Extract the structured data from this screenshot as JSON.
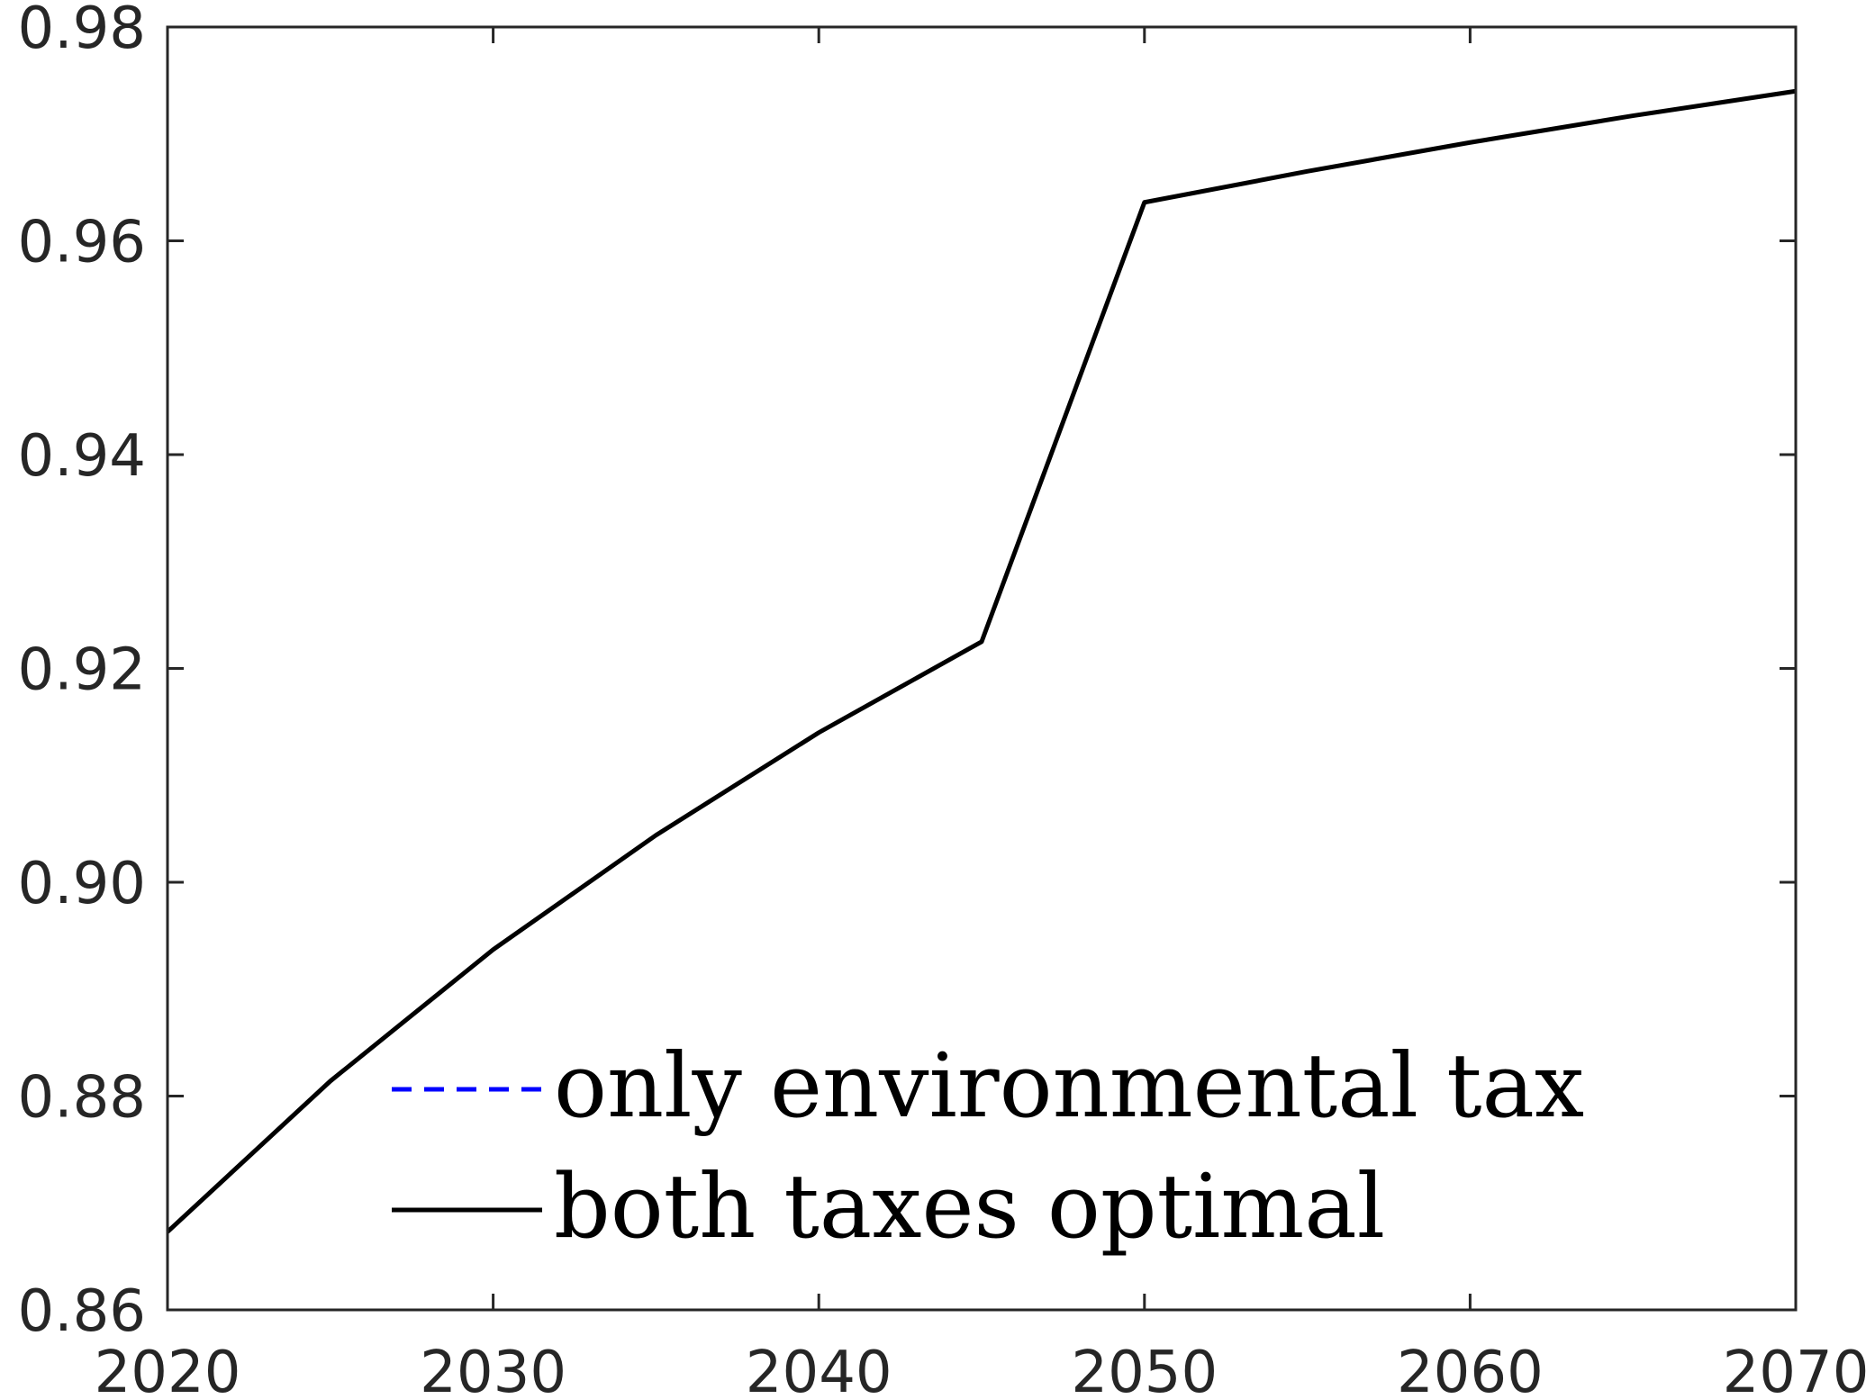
{
  "chart_data": {
    "type": "line",
    "title": "",
    "xlabel": "",
    "ylabel": "",
    "xlim": [
      2020,
      2070
    ],
    "ylim": [
      0.86,
      0.98
    ],
    "x_ticks": [
      2020,
      2030,
      2040,
      2050,
      2060,
      2070
    ],
    "x_tick_labels": [
      "2020",
      "2030",
      "2040",
      "2050",
      "2060",
      "2070"
    ],
    "y_ticks": [
      0.86,
      0.88,
      0.9,
      0.92,
      0.94,
      0.96,
      0.98
    ],
    "y_tick_labels": [
      "0.86",
      "0.88",
      "0.90",
      "0.92",
      "0.94",
      "0.96",
      "0.98"
    ],
    "grid": false,
    "legend_position": "bottom-center",
    "series": [
      {
        "name": "only environmental tax",
        "color": "#0000ff",
        "line_style": "dashed",
        "x": [
          2020,
          2025,
          2030,
          2035,
          2040,
          2045,
          2050,
          2055,
          2060,
          2065,
          2070
        ],
        "y": [
          0.8673,
          0.8814,
          0.8937,
          0.9044,
          0.914,
          0.9225,
          0.9636,
          0.9665,
          0.9692,
          0.9717,
          0.974
        ]
      },
      {
        "name": "both taxes optimal",
        "color": "#000000",
        "line_style": "solid",
        "x": [
          2020,
          2025,
          2030,
          2035,
          2040,
          2045,
          2050,
          2055,
          2060,
          2065,
          2070
        ],
        "y": [
          0.8673,
          0.8814,
          0.8937,
          0.9044,
          0.914,
          0.9225,
          0.9636,
          0.9665,
          0.9692,
          0.9717,
          0.974
        ]
      }
    ]
  }
}
